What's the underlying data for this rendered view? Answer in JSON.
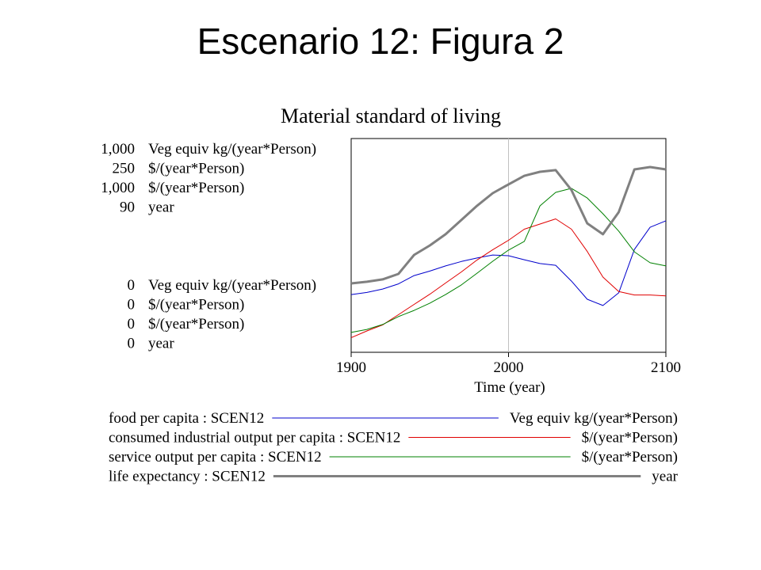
{
  "slide_title": "Escenario 12: Figura 2",
  "chart_data": {
    "type": "line",
    "title": "Material standard of living",
    "xlabel": "Time (year)",
    "xlim": [
      1900,
      2100
    ],
    "xticks": [
      1900,
      2000,
      2100
    ],
    "grid": true,
    "x": [
      1900,
      1910,
      1920,
      1930,
      1940,
      1950,
      1960,
      1970,
      1980,
      1990,
      2000,
      2010,
      2020,
      2030,
      2040,
      2050,
      2060,
      2070,
      2080,
      2090,
      2100
    ],
    "series": [
      {
        "name": "food per capita : SCEN12",
        "unit": "Veg equiv kg/(year*Person)",
        "color": "#0000cc",
        "width": 1,
        "ylim": [
          0,
          1000
        ],
        "yticks": [
          0,
          {
            "value": 1000,
            "label": "1,000"
          }
        ],
        "values": [
          270,
          280,
          296,
          320,
          359,
          380,
          404,
          425,
          441,
          455,
          452,
          433,
          415,
          407,
          333,
          248,
          219,
          278,
          481,
          585,
          615
        ]
      },
      {
        "name": "consumed industrial output per capita : SCEN12",
        "unit": "$/(year*Person)",
        "color": "#e00000",
        "width": 1,
        "ylim": [
          0,
          250
        ],
        "yticks": [
          0,
          250
        ],
        "values": [
          17,
          25,
          32,
          44,
          56,
          68,
          81,
          94,
          108,
          120,
          131,
          144,
          150,
          156,
          144,
          118,
          88,
          71,
          67,
          67,
          66
        ]
      },
      {
        "name": "service output per capita : SCEN12",
        "unit": "$/(year*Person)",
        "color": "#008000",
        "width": 1,
        "ylim": [
          0,
          1000
        ],
        "yticks": [
          0,
          {
            "value": 1000,
            "label": "1,000"
          }
        ],
        "values": [
          93,
          107,
          130,
          167,
          196,
          230,
          270,
          315,
          370,
          426,
          478,
          519,
          685,
          748,
          767,
          722,
          648,
          567,
          470,
          419,
          404
        ]
      },
      {
        "name": "life expectancy : SCEN12",
        "unit": "year",
        "color": "#808080",
        "width": 3,
        "ylim": [
          0,
          90
        ],
        "yticks": [
          0,
          90
        ],
        "values": [
          29,
          29.7,
          30.7,
          33,
          41,
          45,
          49.7,
          55.7,
          61.7,
          67,
          70.7,
          74.3,
          76,
          76.7,
          68.3,
          54.3,
          49.7,
          59,
          77,
          78,
          77
        ]
      }
    ]
  }
}
